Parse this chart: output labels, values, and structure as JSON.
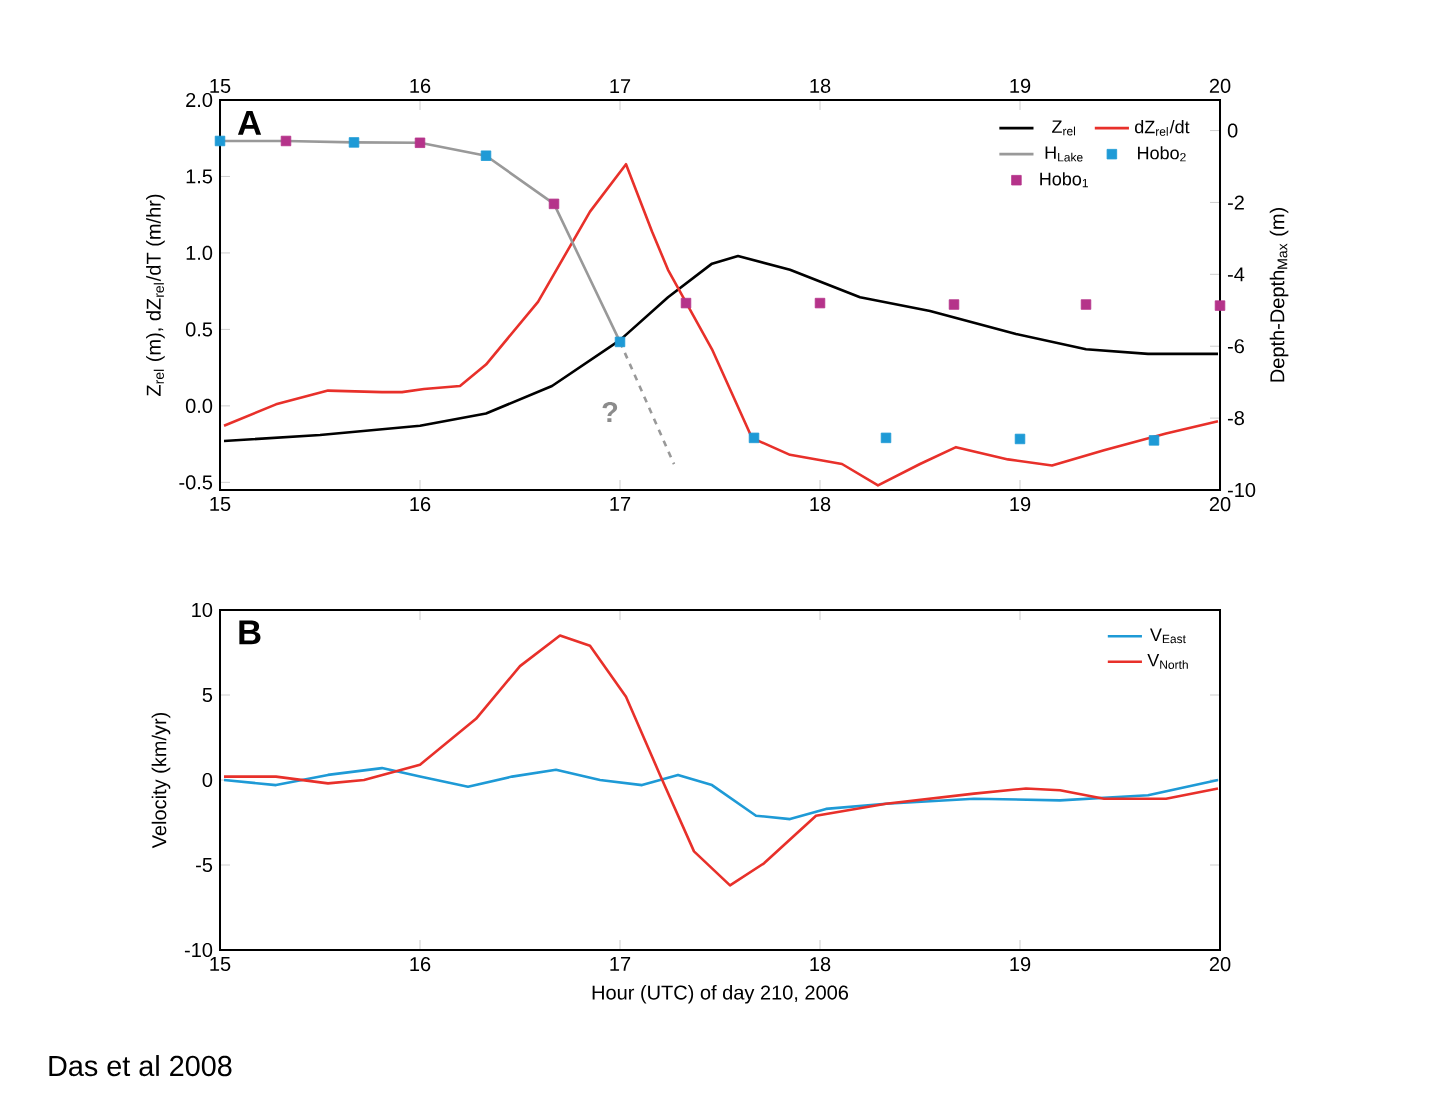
{
  "chart_data": [
    {
      "type": "line",
      "ylabel": "Z$_{rel}$ (m), dZ$_{rel}$/dT (m/hr)",
      "y2label": "Depth-Depth$_{Max}$ (m)",
      "annotations": [
        "A",
        "?"
      ],
      "xlim": [
        15,
        20
      ],
      "xticks": [
        15,
        16,
        17,
        18,
        19,
        20
      ],
      "x2lim": [
        15,
        20
      ],
      "x2ticks": [
        15,
        16,
        17,
        18,
        19,
        20
      ],
      "ylim": [
        -0.55,
        2.0
      ],
      "yticks": [
        -0.5,
        {
          "value": 0,
          "label": "0.0"
        },
        0.5,
        {
          "value": 1,
          "label": "1.0"
        },
        1.5,
        {
          "value": 2,
          "label": "2.0"
        }
      ],
      "y2lim": [
        -10,
        0.85
      ],
      "y2ticks": [
        -10,
        -8,
        -6,
        -4,
        -2,
        0
      ],
      "legend": "top right",
      "grid": false,
      "series": [
        {
          "name": "Z$_{rel}$",
          "color": "#000000",
          "x": [
            15.02,
            15.5,
            16.0,
            16.33,
            16.66,
            17.0,
            17.24,
            17.46,
            17.59,
            17.85,
            18.2,
            18.55,
            18.98,
            19.33,
            19.64,
            19.99
          ],
          "values": [
            -0.23,
            -0.19,
            -0.13,
            -0.05,
            0.13,
            0.43,
            0.71,
            0.93,
            0.98,
            0.89,
            0.71,
            0.62,
            0.47,
            0.37,
            0.34,
            0.34
          ]
        },
        {
          "name": "dZ$_{rel}$/dt",
          "color": "#e8302a",
          "x": [
            15.02,
            15.28,
            15.54,
            15.81,
            15.91,
            16.02,
            16.2,
            16.33,
            16.59,
            16.85,
            17.03,
            17.16,
            17.24,
            17.46,
            17.66,
            17.85,
            18.11,
            18.29,
            18.5,
            18.68,
            18.94,
            19.16,
            19.42,
            19.73,
            19.99
          ],
          "values": [
            -0.13,
            0.01,
            0.1,
            0.09,
            0.09,
            0.11,
            0.13,
            0.27,
            0.68,
            1.27,
            1.58,
            1.14,
            0.89,
            0.37,
            -0.21,
            -0.32,
            -0.38,
            -0.52,
            -0.38,
            -0.27,
            -0.35,
            -0.39,
            -0.29,
            -0.18,
            -0.1
          ]
        },
        {
          "name": "H$_{Lake}$",
          "color": "#999999",
          "axis": "y2",
          "x": [
            15.0,
            15.33,
            15.67,
            16.0,
            16.33,
            16.67,
            17.0
          ],
          "values": [
            -0.29,
            -0.29,
            -0.33,
            -0.34,
            -0.7,
            -2.04,
            -5.88
          ]
        },
        {
          "color": "#999999",
          "axis": "y2",
          "line_style": "dashed",
          "x": [
            17.0,
            17.27
          ],
          "values": [
            -5.88,
            -9.28
          ]
        },
        {
          "name": "Hobo$_{2}$",
          "type": "scatter",
          "marker": "square",
          "color": "#1e9ad6",
          "axis": "y2",
          "x": [
            15.0,
            15.67,
            16.33,
            17.0,
            17.67,
            18.33,
            19.0,
            19.67
          ],
          "values": [
            -0.29,
            -0.33,
            -0.7,
            -5.88,
            -8.55,
            -8.55,
            -8.58,
            -8.62
          ]
        },
        {
          "name": "Hobo$_{1}$",
          "type": "scatter",
          "marker": "square",
          "color": "#b5338a",
          "axis": "y2",
          "x": [
            15.33,
            16.0,
            16.67,
            17.33,
            18.0,
            18.67,
            19.33,
            20.0
          ],
          "values": [
            -0.29,
            -0.34,
            -2.04,
            -4.8,
            -4.8,
            -4.84,
            -4.84,
            -4.87
          ]
        }
      ]
    },
    {
      "type": "line",
      "xlabel": "Hour (UTC) of day 210, 2006",
      "ylabel": "Velocity (km/yr)",
      "annotations": [
        "B",
        "Das et al 2008"
      ],
      "xlim": [
        15,
        20
      ],
      "xticks": [
        15,
        16,
        17,
        18,
        19,
        20
      ],
      "ylim": [
        -10,
        10
      ],
      "yticks": [
        -10,
        -5,
        0,
        5,
        10
      ],
      "legend": "top right",
      "grid": false,
      "series": [
        {
          "name": "V$_{East}$",
          "color": "#1e9ad6",
          "x": [
            15.02,
            15.28,
            15.54,
            15.81,
            16.0,
            16.24,
            16.46,
            16.68,
            16.9,
            17.11,
            17.29,
            17.46,
            17.68,
            17.85,
            18.03,
            18.33,
            18.77,
            19.2,
            19.64,
            19.99
          ],
          "values": [
            0,
            -0.3,
            0.3,
            0.7,
            0.2,
            -0.4,
            0.2,
            0.6,
            0,
            -0.3,
            0.3,
            -0.3,
            -2.1,
            -2.3,
            -1.7,
            -1.4,
            -1.1,
            -1.2,
            -0.9,
            0
          ]
        },
        {
          "name": "V$_{North}$",
          "color": "#e8302a",
          "x": [
            15.02,
            15.28,
            15.54,
            15.72,
            16.0,
            16.28,
            16.5,
            16.7,
            16.85,
            17.03,
            17.2,
            17.37,
            17.55,
            17.72,
            17.98,
            18.33,
            18.77,
            19.03,
            19.2,
            19.42,
            19.73,
            19.99
          ],
          "values": [
            0.2,
            0.2,
            -0.2,
            0,
            0.9,
            3.6,
            6.7,
            8.5,
            7.9,
            4.9,
            0.3,
            -4.2,
            -6.2,
            -4.9,
            -2.1,
            -1.4,
            -0.8,
            -0.5,
            -0.6,
            -1.1,
            -1.1,
            -0.5
          ]
        }
      ]
    }
  ]
}
